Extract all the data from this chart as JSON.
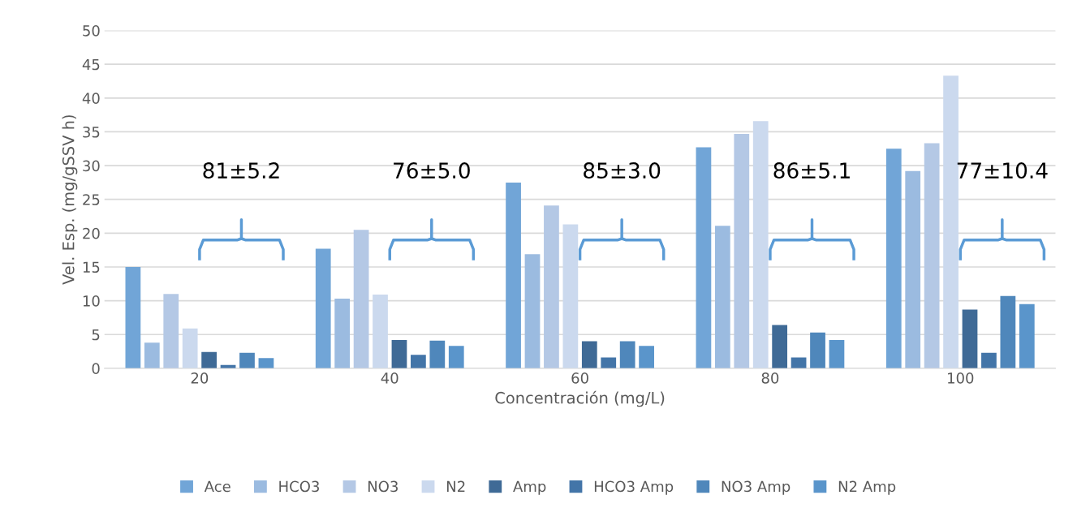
{
  "chart_data": {
    "type": "bar",
    "xlabel": "Concentración (mg/L)",
    "ylabel": "Vel. Esp. (mg/gSSV h)",
    "categories": [
      "20",
      "40",
      "60",
      "80",
      "100"
    ],
    "series": [
      {
        "name": "Ace",
        "color": "#71a5d7",
        "values": [
          15.0,
          17.7,
          27.5,
          32.7,
          32.5
        ]
      },
      {
        "name": "HCO3",
        "color": "#9bbbe0",
        "values": [
          3.8,
          10.3,
          16.9,
          21.1,
          29.2
        ]
      },
      {
        "name": "NO3",
        "color": "#b4c8e5",
        "values": [
          11.0,
          20.5,
          24.1,
          34.7,
          33.3
        ]
      },
      {
        "name": "N2",
        "color": "#cbd9ee",
        "values": [
          5.9,
          10.9,
          21.3,
          36.6,
          43.3
        ]
      },
      {
        "name": "Amp",
        "color": "#3f6a96",
        "values": [
          2.4,
          4.2,
          4.0,
          6.4,
          8.7
        ]
      },
      {
        "name": "HCO3 Amp",
        "color": "#4375a8",
        "values": [
          0.5,
          2.0,
          1.6,
          1.6,
          2.3
        ]
      },
      {
        "name": "NO3 Amp",
        "color": "#4f87bb",
        "values": [
          2.3,
          4.1,
          4.0,
          5.3,
          10.7
        ]
      },
      {
        "name": "N2 Amp",
        "color": "#5a95cb",
        "values": [
          1.5,
          3.3,
          3.3,
          4.2,
          9.5
        ]
      }
    ],
    "annotations": [
      "81±5.2",
      "76±5.0",
      "85±3.0",
      "86±5.1",
      "77±10.4"
    ],
    "ylim": [
      0,
      50
    ],
    "yticks": [
      0,
      5,
      10,
      15,
      20,
      25,
      30,
      35,
      40,
      45,
      50
    ],
    "grid": "y",
    "legend": "bottom"
  }
}
